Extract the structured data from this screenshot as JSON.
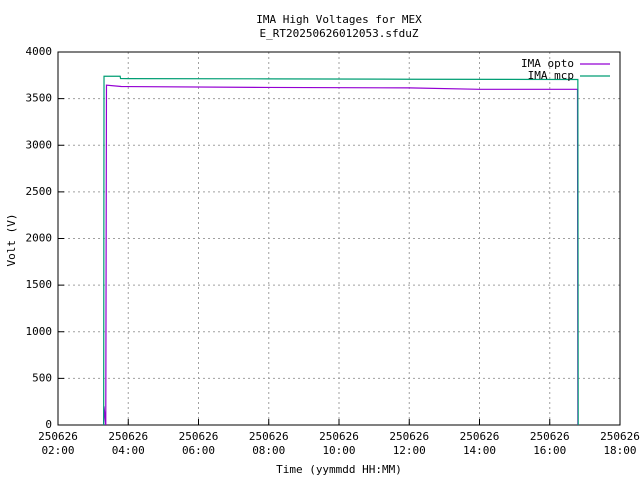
{
  "chart_data": {
    "type": "line",
    "title": "IMA High Voltages for MEX",
    "subtitle": "E_RT20250626012053.sfduZ",
    "x_label": "Time (yymmdd HH:MM)",
    "y_label": "Volt (V)",
    "xlim": [
      2,
      18
    ],
    "xticks": [
      {
        "value": 2,
        "label": "250626 02:00"
      },
      {
        "value": 4,
        "label": "250626 04:00"
      },
      {
        "value": 6,
        "label": "250626 06:00"
      },
      {
        "value": 8,
        "label": "250626 08:00"
      },
      {
        "value": 10,
        "label": "250626 10:00"
      },
      {
        "value": 12,
        "label": "250626 12:00"
      },
      {
        "value": 14,
        "label": "250626 14:00"
      },
      {
        "value": 16,
        "label": "250626 16:00"
      },
      {
        "value": 18,
        "label": "250626 18:00"
      }
    ],
    "ylim": [
      0,
      4000
    ],
    "yticks": [
      0,
      500,
      1000,
      1500,
      2000,
      2500,
      3000,
      3500,
      4000
    ],
    "grid": true,
    "legend": "top-right",
    "series": [
      {
        "name": "IMA opto",
        "color": "#9400d3",
        "x": [
          3.3,
          3.31,
          3.36,
          3.38,
          3.8,
          8,
          12,
          14,
          16.79,
          16.8
        ],
        "values": [
          0,
          200,
          0,
          3645,
          3630,
          3620,
          3615,
          3600,
          3600,
          0
        ]
      },
      {
        "name": "IMA mcp",
        "color": "#009e73",
        "x": [
          3.3,
          3.31,
          3.77,
          3.78,
          8,
          12,
          16.8,
          16.81
        ],
        "values": [
          0,
          3740,
          3740,
          3715,
          3712,
          3708,
          3705,
          0
        ]
      }
    ]
  }
}
